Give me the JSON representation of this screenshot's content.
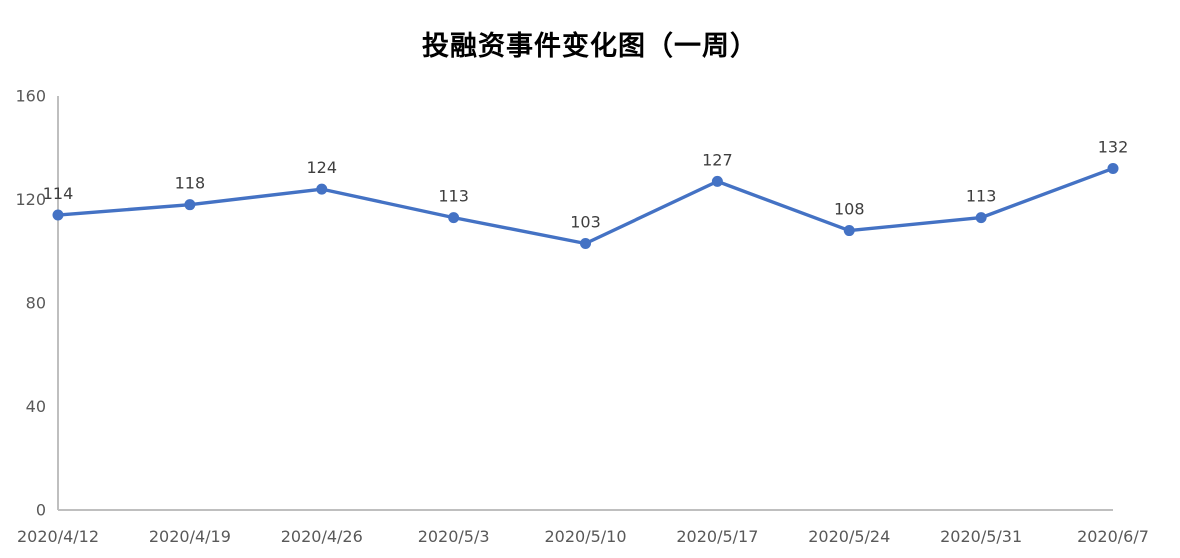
{
  "chart_data": {
    "type": "line",
    "title": "投融资事件变化图（一周）",
    "categories": [
      "2020/4/12",
      "2020/4/19",
      "2020/4/26",
      "2020/5/3",
      "2020/5/10",
      "2020/5/17",
      "2020/5/24",
      "2020/5/31",
      "2020/6/7"
    ],
    "values": [
      114,
      118,
      124,
      113,
      103,
      127,
      108,
      113,
      132
    ],
    "xlabel": "",
    "ylabel": "",
    "ylim": [
      0,
      160
    ],
    "yticks": [
      0,
      40,
      80,
      120,
      160
    ],
    "grid": false,
    "legend": "none",
    "data_labels": true,
    "colors": {
      "line": "#4472C4",
      "marker": "#4472C4",
      "axis": "#BFBFBF",
      "tick_label": "#595959",
      "data_label": "#3F3F3F",
      "title": "#000000"
    }
  }
}
